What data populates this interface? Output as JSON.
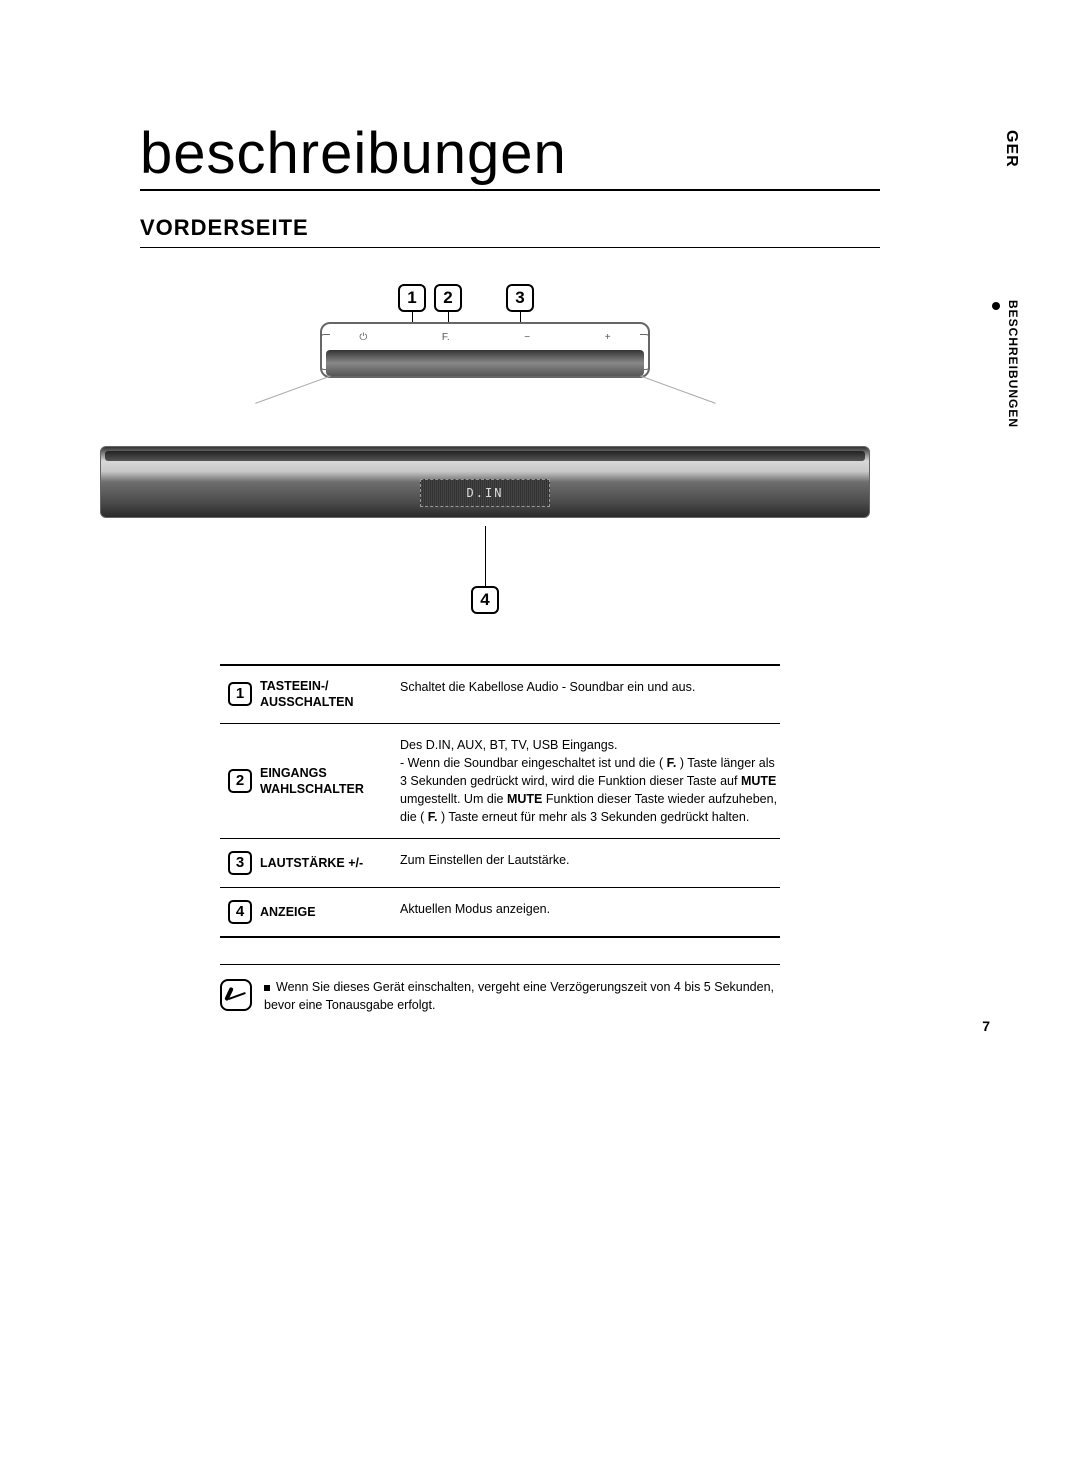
{
  "language_tab": "GER",
  "section_tab": "BESCHREIBUNGEN",
  "title": "beschreibungen",
  "subtitle": "VORDERSEITE",
  "page_number": "7",
  "diagram": {
    "callouts": [
      "1",
      "2",
      "3",
      "4"
    ],
    "top_button_labels": [
      "⏻",
      "F.",
      "−",
      "+"
    ],
    "display_text": "D.IN",
    "top_unit_bg": "#ffffff",
    "soundbar_gradient_top": "#333333",
    "soundbar_gradient_bottom": "#2a2a2a",
    "callout_border_color": "#000000"
  },
  "table": {
    "rows": [
      {
        "num": "1",
        "label": "TASTEEIN-/ AUSSCHALTEN",
        "text_html": "Schaltet die Kabellose Audio - Soundbar ein und aus."
      },
      {
        "num": "2",
        "label": "EINGANGS WAHLSCHALTER",
        "text_html": "Des D.IN, AUX, BT, TV, USB Eingangs.<br>- Wenn die Soundbar eingeschaltet ist und die ( <span class=\"bold\">F.</span> ) Taste länger als 3 Sekunden gedrückt wird, wird die Funktion dieser Taste auf <span class=\"bold\">MUTE</span> umgestellt. Um die <span class=\"bold\">MUTE</span> Funktion dieser Taste wieder aufzuheben, die ( <span class=\"bold\">F.</span> ) Taste erneut für mehr als 3 Sekunden gedrückt halten."
      },
      {
        "num": "3",
        "label": "LAUTSTÄRKE +/-",
        "text_html": "Zum Einstellen der Lautstärke."
      },
      {
        "num": "4",
        "label": "ANZEIGE",
        "text_html": "Aktuellen Modus anzeigen."
      }
    ]
  },
  "note": "Wenn Sie dieses Gerät einschalten, vergeht eine Verzögerungszeit von 4 bis 5 Sekunden, bevor eine Tonausgabe erfolgt."
}
